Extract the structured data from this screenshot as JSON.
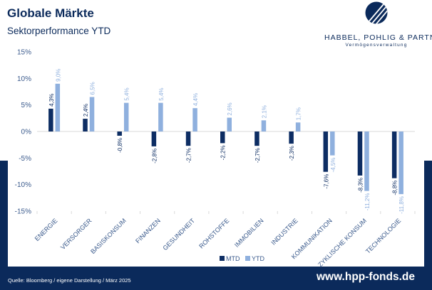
{
  "header": {
    "title": "Globale Märkte",
    "subtitle": "Sektorperformance YTD"
  },
  "logo": {
    "name": "HABBEL, POHLIG & PARTNER",
    "tagline": "Vermögensverwaltung"
  },
  "footer": {
    "source": "Quelle: Bloomberg / eigene Darstellung / März 2025",
    "url": "www.hpp-fonds.de"
  },
  "colors": {
    "navy": "#0b2a5b",
    "mtd": "#0d2d63",
    "ytd": "#8fb0de",
    "label": "#3a5a8c"
  },
  "chart_data": {
    "type": "bar",
    "categories": [
      "ENERGIE",
      "VERSORGER",
      "BASISKONSUM",
      "FINANZEN",
      "GESUNDHEIT",
      "ROHSTOFFE",
      "IMMOBILIEN",
      "INDUSTRIE",
      "KOMMUNIKATION",
      "ZYKLISCHE KONSUM",
      "TECHNOLOGIE"
    ],
    "series": [
      {
        "name": "MTD",
        "values": [
          4.3,
          2.4,
          -0.8,
          -2.8,
          -2.7,
          -2.2,
          -2.7,
          -2.3,
          -7.6,
          -8.3,
          -8.8
        ],
        "labels": [
          "4,3%",
          "2,4%",
          "-0,8%",
          "-2,8%",
          "-2,7%",
          "-2,2%",
          "-2,7%",
          "-2,3%",
          "-7,6%",
          "-8,3%",
          "-8,8%"
        ],
        "color": "#0d2d63"
      },
      {
        "name": "YTD",
        "values": [
          9.0,
          6.5,
          5.4,
          5.4,
          4.4,
          2.6,
          2.1,
          1.7,
          -4.5,
          -11.2,
          -11.8
        ],
        "labels": [
          "9,0%",
          "6,5%",
          "5,4%",
          "5,4%",
          "4,4%",
          "2,6%",
          "2,1%",
          "1,7%",
          "-4,5%",
          "-11,2%",
          "-11,8%"
        ],
        "color": "#8fb0de"
      }
    ],
    "ylim": [
      -15,
      15
    ],
    "yticks": [
      -15,
      -10,
      -5,
      0,
      5,
      10,
      15
    ],
    "ytick_labels": [
      "-15%",
      "-10%",
      "-5%",
      "0%",
      "5%",
      "10%",
      "15%"
    ],
    "xlabel": "",
    "ylabel": "",
    "grid": false,
    "legend_position": "bottom"
  }
}
